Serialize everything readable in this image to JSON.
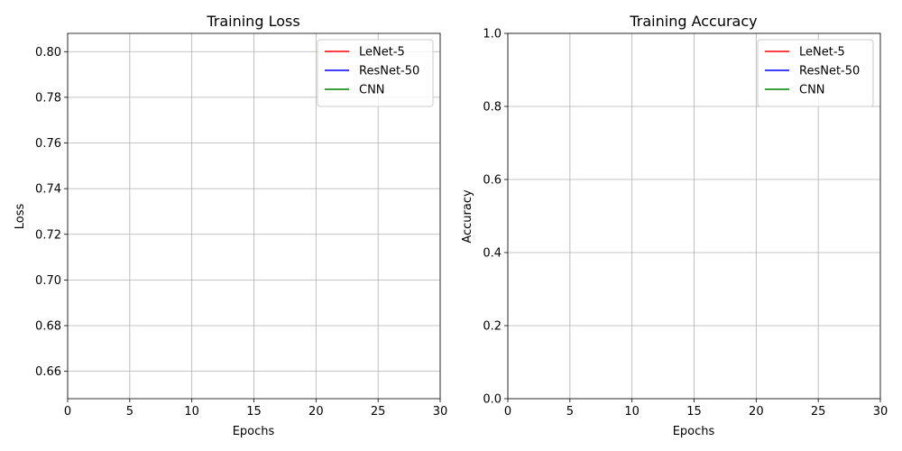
{
  "chart_data": [
    {
      "type": "line",
      "title": "Training Loss",
      "xlabel": "Epochs",
      "ylabel": "Loss",
      "xlim": [
        0,
        30
      ],
      "ylim": [
        0.648,
        0.808
      ],
      "xticks": [
        "0",
        "5",
        "10",
        "15",
        "20",
        "25",
        "30"
      ],
      "xtick_values": [
        0,
        5,
        10,
        15,
        20,
        25,
        30
      ],
      "yticks": [
        "0.66",
        "0.68",
        "0.70",
        "0.72",
        "0.74",
        "0.76",
        "0.78",
        "0.80"
      ],
      "ytick_values": [
        0.66,
        0.68,
        0.7,
        0.72,
        0.74,
        0.76,
        0.78,
        0.8
      ],
      "grid": true,
      "legend_position": "top-right",
      "series": [
        {
          "name": "LeNet-5",
          "color": "#ff0000",
          "x": [],
          "y": []
        },
        {
          "name": "ResNet-50",
          "color": "#0000ff",
          "x": [],
          "y": []
        },
        {
          "name": "CNN",
          "color": "#008000",
          "x": [],
          "y": []
        }
      ]
    },
    {
      "type": "line",
      "title": "Training Accuracy",
      "xlabel": "Epochs",
      "ylabel": "Accuracy",
      "xlim": [
        0,
        30
      ],
      "ylim": [
        0.0,
        1.0
      ],
      "xticks": [
        "0",
        "5",
        "10",
        "15",
        "20",
        "25",
        "30"
      ],
      "xtick_values": [
        0,
        5,
        10,
        15,
        20,
        25,
        30
      ],
      "yticks": [
        "0.0",
        "0.2",
        "0.4",
        "0.6",
        "0.8",
        "1.0"
      ],
      "ytick_values": [
        0.0,
        0.2,
        0.4,
        0.6,
        0.8,
        1.0
      ],
      "grid": true,
      "legend_position": "top-right",
      "series": [
        {
          "name": "LeNet-5",
          "color": "#ff0000",
          "x": [],
          "y": []
        },
        {
          "name": "ResNet-50",
          "color": "#0000ff",
          "x": [],
          "y": []
        },
        {
          "name": "CNN",
          "color": "#008000",
          "x": [],
          "y": []
        }
      ]
    }
  ]
}
